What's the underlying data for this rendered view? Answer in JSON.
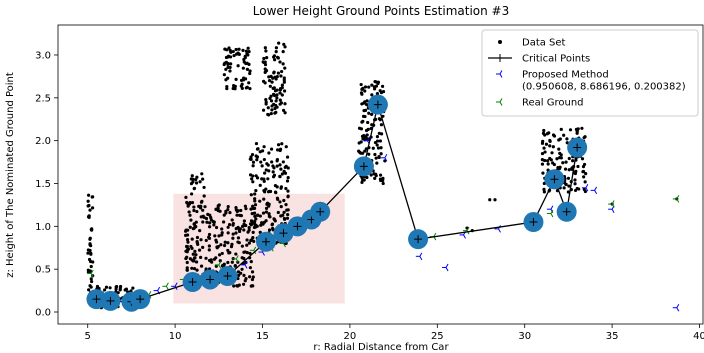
{
  "chart_data": {
    "type": "scatter",
    "title": "Lower Height Ground Points Estimation #3",
    "xlabel": "r: Radial Distance from Car",
    "ylabel": "z: Height of The Nominated Ground Point",
    "xlim": [
      3.3,
      40.2
    ],
    "ylim": [
      -0.14,
      3.35
    ],
    "xticks": [
      5,
      10,
      15,
      20,
      25,
      30,
      35,
      40
    ],
    "yticks": [
      0.0,
      0.5,
      1.0,
      1.5,
      2.0,
      2.5,
      3.0
    ],
    "grid": false,
    "legend": {
      "placement": "top-right",
      "entries": [
        {
          "label": "Data Set",
          "color": "#000000",
          "marker": "dot"
        },
        {
          "label": "Critical Points",
          "color": "#000000",
          "marker": "line-plus"
        },
        {
          "label": "Proposed Method",
          "sublabel": "(0.950608, 8.686196, 0.200382)",
          "color": "#0000ff",
          "marker": "tri-left"
        },
        {
          "label": "Real Ground",
          "color": "#008000",
          "marker": "tri-left"
        }
      ]
    },
    "highlight_region": {
      "x": [
        9.9,
        19.7
      ],
      "y": [
        0.1,
        1.38
      ],
      "color": "#f6d5d5"
    },
    "critical_points": {
      "x": [
        5.5,
        6.3,
        7.5,
        8.0,
        11.0,
        12.0,
        13.0,
        15.2,
        16.2,
        17.0,
        17.8,
        18.3,
        20.8,
        21.6,
        23.9,
        30.5,
        31.7,
        32.4,
        33.0
      ],
      "y": [
        0.15,
        0.13,
        0.12,
        0.15,
        0.35,
        0.38,
        0.42,
        0.82,
        0.92,
        1.0,
        1.08,
        1.17,
        1.7,
        2.42,
        0.85,
        1.05,
        1.55,
        1.17,
        1.92
      ],
      "marker_color": "#1f77b4"
    },
    "data_set_clusters": [
      {
        "x_range": [
          5.0,
          5.3
        ],
        "y_range": [
          0.2,
          1.38
        ]
      },
      {
        "x_range": [
          5.3,
          8.2
        ],
        "y_range": [
          0.05,
          0.3
        ]
      },
      {
        "x_range": [
          10.6,
          11.7
        ],
        "y_range": [
          0.3,
          1.62
        ]
      },
      {
        "x_range": [
          11.7,
          14.5
        ],
        "y_range": [
          0.3,
          1.25
        ]
      },
      {
        "x_range": [
          12.8,
          14.3
        ],
        "y_range": [
          2.6,
          3.1
        ]
      },
      {
        "x_range": [
          14.3,
          16.5
        ],
        "y_range": [
          0.8,
          1.98
        ]
      },
      {
        "x_range": [
          15.0,
          16.3
        ],
        "y_range": [
          2.3,
          3.15
        ]
      },
      {
        "x_range": [
          20.5,
          22.0
        ],
        "y_range": [
          1.5,
          2.7
        ]
      },
      {
        "x_range": [
          31.0,
          33.5
        ],
        "y_range": [
          1.4,
          2.15
        ]
      }
    ],
    "data_set_points": {
      "x": [
        26.7,
        27.0,
        28.0,
        28.3,
        35.0,
        38.7
      ],
      "y": [
        0.98,
        0.95,
        1.31,
        1.31,
        1.26,
        1.32
      ]
    },
    "proposed_method": {
      "x": [
        5.3,
        6.0,
        7.0,
        8.0,
        9.0,
        10.0,
        11.0,
        12.0,
        13.0,
        14.0,
        15.0,
        16.0,
        17.0,
        18.0,
        18.6,
        21.0,
        22.0,
        24.0,
        25.5,
        26.5,
        28.5,
        30.5,
        31.5,
        33.5,
        34.0,
        35.0,
        38.7
      ],
      "y": [
        0.2,
        0.15,
        0.12,
        0.15,
        0.25,
        0.3,
        0.33,
        0.38,
        0.45,
        0.55,
        0.7,
        0.85,
        1.0,
        1.1,
        1.18,
        2.0,
        1.8,
        0.65,
        0.52,
        0.9,
        0.97,
        1.05,
        1.2,
        1.45,
        1.42,
        1.2,
        0.05
      ]
    },
    "real_ground": {
      "x": [
        5.2,
        5.8,
        6.5,
        7.5,
        8.5,
        9.5,
        10.5,
        11.5,
        12.5,
        13.5,
        14.5,
        15.5,
        16.2,
        24.8,
        26.7,
        31.5,
        32.4,
        35.0,
        38.7
      ],
      "y": [
        0.45,
        0.2,
        0.18,
        0.15,
        0.2,
        0.3,
        0.38,
        0.42,
        0.55,
        0.62,
        0.72,
        0.75,
        0.8,
        0.88,
        0.95,
        1.15,
        1.2,
        1.26,
        1.32
      ]
    }
  }
}
